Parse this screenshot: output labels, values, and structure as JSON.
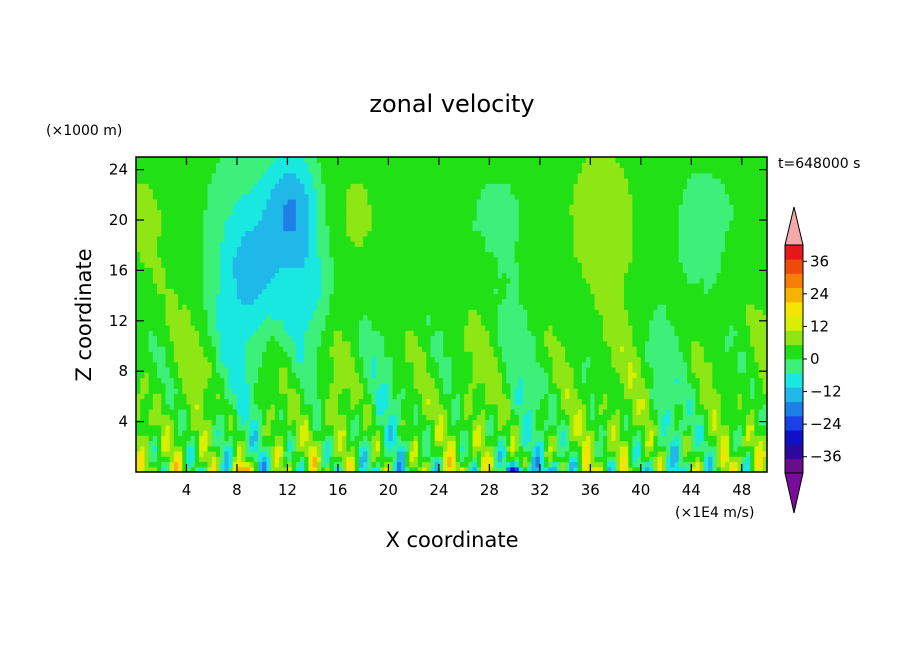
{
  "chart_data": {
    "type": "heatmap",
    "title": "zonal velocity",
    "xlabel": "X coordinate",
    "ylabel": "Z coordinate",
    "x_unit": "(×1E4 m/s)",
    "y_unit": "(×1000 m)",
    "time_label": "t=648000 s",
    "xlim": [
      0,
      50
    ],
    "ylim": [
      0,
      25
    ],
    "x_ticks": [
      4,
      8,
      12,
      16,
      20,
      24,
      28,
      32,
      36,
      40,
      44,
      48
    ],
    "y_ticks": [
      4,
      8,
      12,
      16,
      20,
      24
    ],
    "colorbar": {
      "levels": [
        -42,
        -36,
        -30,
        -24,
        -18,
        -12,
        -6,
        0,
        6,
        12,
        18,
        24,
        30,
        36,
        42
      ],
      "tick_values": [
        36,
        24,
        12,
        0,
        -12,
        -24,
        -36
      ],
      "tick_labels": [
        "36",
        "24",
        "12",
        "0",
        "−12",
        "−24",
        "−36"
      ],
      "colors": [
        "#6a0d8a",
        "#2a0a9a",
        "#1010c8",
        "#1a40e8",
        "#1e7fe6",
        "#1fb8e8",
        "#18e8e0",
        "#3cf07a",
        "#22e016",
        "#8ee614",
        "#d8f000",
        "#f4e400",
        "#f6b400",
        "#f47e06",
        "#ee4a0c",
        "#e41a1a"
      ],
      "over_color": "#f4a8a8",
      "under_color": "#7a0c9c"
    }
  }
}
